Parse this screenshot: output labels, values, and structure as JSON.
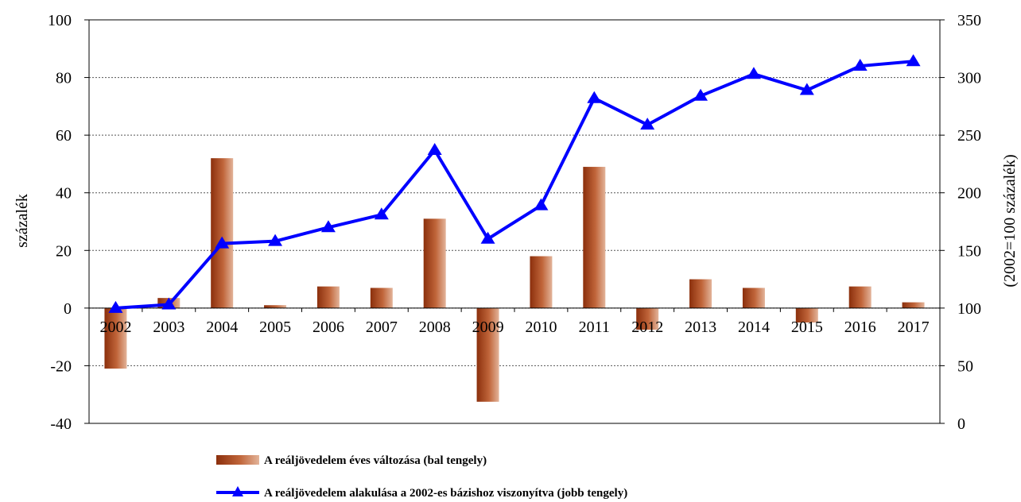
{
  "chart_data": {
    "type": "bar+line",
    "categories": [
      "2002",
      "2003",
      "2004",
      "2005",
      "2006",
      "2007",
      "2008",
      "2009",
      "2010",
      "2011",
      "2012",
      "2013",
      "2014",
      "2015",
      "2016",
      "2017"
    ],
    "series": [
      {
        "name": "A reáljövedelem éves változása (bal tengely)",
        "type": "bar",
        "axis": "left",
        "color": "#a0522d",
        "values": [
          -21,
          3.5,
          52,
          1,
          7.5,
          7,
          31,
          -32.5,
          18,
          49,
          -7.5,
          10,
          7,
          -5,
          7.5,
          2
        ]
      },
      {
        "name": "A reáljövedelem alakulása a 2002-es bázishoz viszonyítva (jobb tengely)",
        "type": "line",
        "axis": "right",
        "color": "#0000ff",
        "marker": "triangle",
        "values": [
          100,
          103,
          156,
          158,
          170,
          181,
          237,
          160,
          189,
          282,
          259,
          284,
          303,
          289,
          310,
          314
        ]
      }
    ],
    "left_axis": {
      "label": "százalék",
      "min": -40,
      "max": 100,
      "step": 20,
      "ticks": [
        "-40",
        "-20",
        "0",
        "20",
        "40",
        "60",
        "80",
        "100"
      ]
    },
    "right_axis": {
      "label": "(2002=100 százalék)",
      "min": 0,
      "max": 350,
      "step": 50,
      "ticks": [
        "0",
        "50",
        "100",
        "150",
        "200",
        "250",
        "300",
        "350"
      ]
    },
    "grid": true,
    "legend_position": "bottom"
  }
}
